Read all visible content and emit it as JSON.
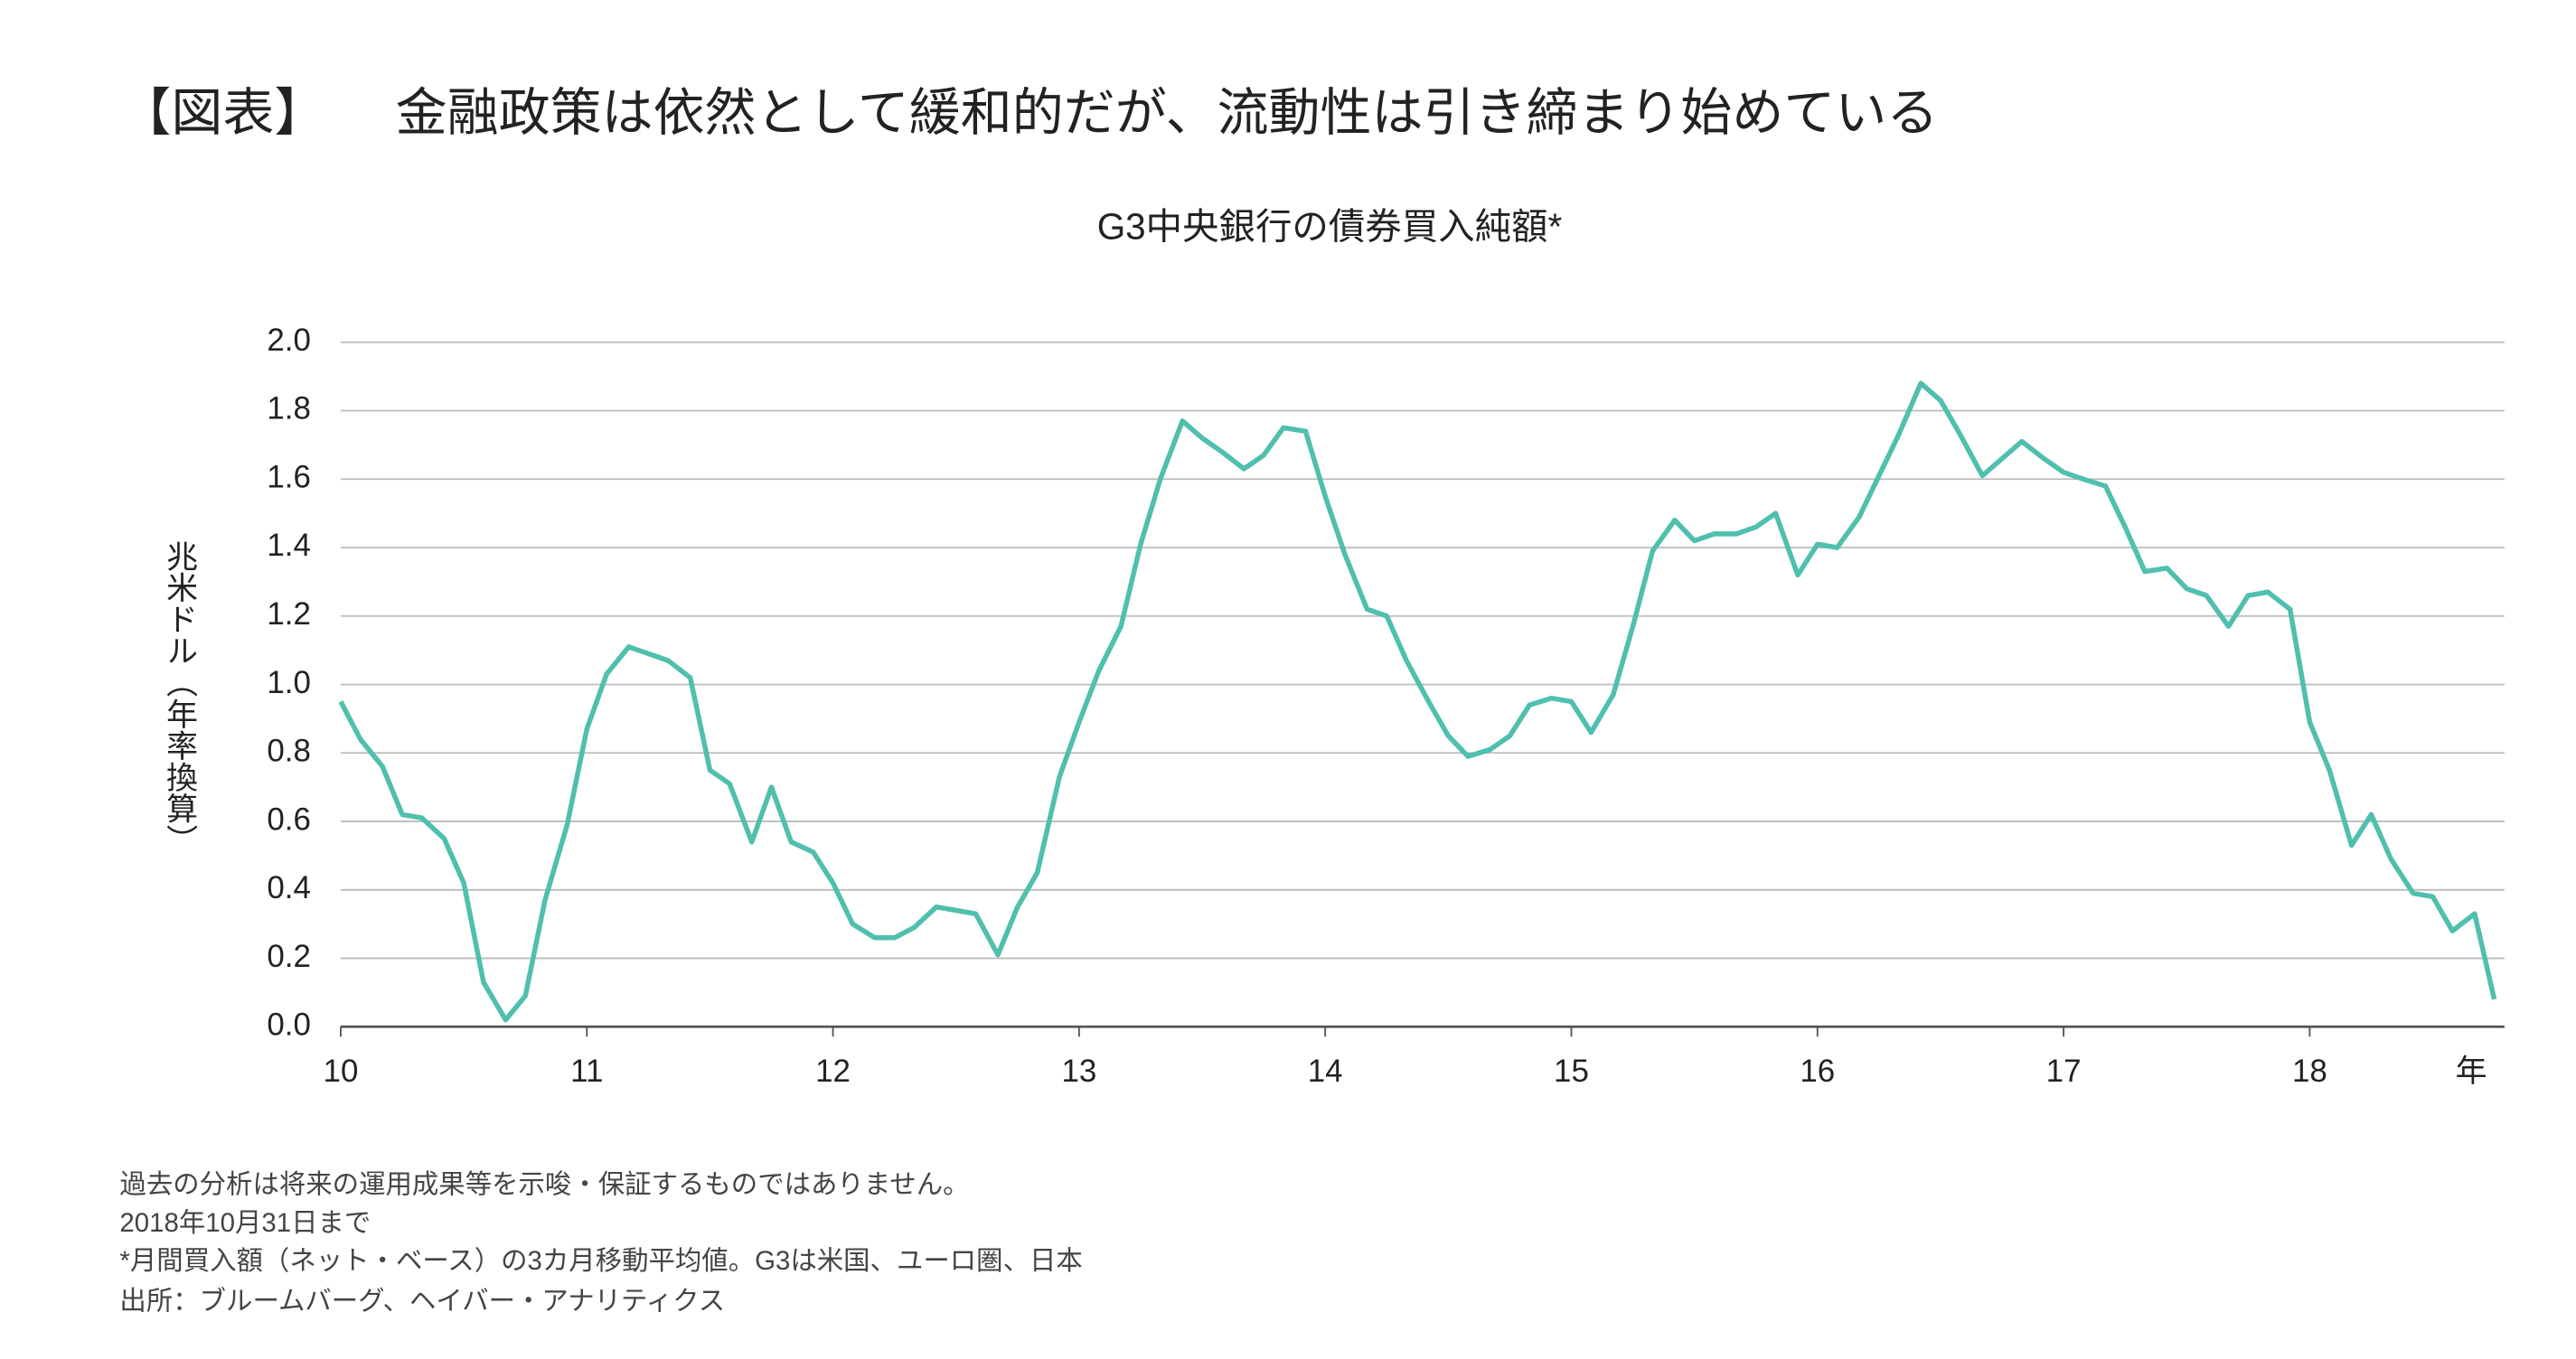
{
  "header": {
    "tag": "【図表】",
    "title": "金融政策は依然として緩和的だが、流動性は引き締まり始めている"
  },
  "chart_data": {
    "type": "line",
    "title": "G3中央銀行の債券買入純額*",
    "y_label": "兆米ドル（年率換算）",
    "x_unit": "年",
    "xlim": [
      10,
      18.8
    ],
    "xticks": [
      10,
      11,
      12,
      13,
      14,
      15,
      16,
      17,
      18
    ],
    "ylim": [
      0,
      2
    ],
    "yticks": [
      {
        "value": 0,
        "label": "0.0"
      },
      {
        "value": 0.2,
        "label": "0.2"
      },
      {
        "value": 0.4,
        "label": "0.4"
      },
      {
        "value": 0.6,
        "label": "0.6"
      },
      {
        "value": 0.8,
        "label": "0.8"
      },
      {
        "value": 1,
        "label": "1.0"
      },
      {
        "value": 1.2,
        "label": "1.2"
      },
      {
        "value": 1.4,
        "label": "1.4"
      },
      {
        "value": 1.6,
        "label": "1.6"
      },
      {
        "value": 1.8,
        "label": "1.8"
      },
      {
        "value": 2,
        "label": "2.0"
      }
    ],
    "grid": true,
    "x": [
      10,
      10.08,
      10.17,
      10.25,
      10.33,
      10.42,
      10.5,
      10.58,
      10.67,
      10.75,
      10.83,
      10.92,
      11,
      11.08,
      11.17,
      11.25,
      11.33,
      11.42,
      11.5,
      11.58,
      11.67,
      11.75,
      11.83,
      11.92,
      12,
      12.08,
      12.17,
      12.25,
      12.33,
      12.42,
      12.5,
      12.58,
      12.67,
      12.75,
      12.83,
      12.92,
      13,
      13.08,
      13.17,
      13.25,
      13.33,
      13.42,
      13.5,
      13.58,
      13.67,
      13.75,
      13.83,
      13.92,
      14,
      14.08,
      14.17,
      14.25,
      14.33,
      14.42,
      14.5,
      14.58,
      14.67,
      14.75,
      14.83,
      14.92,
      15,
      15.08,
      15.17,
      15.25,
      15.33,
      15.42,
      15.5,
      15.58,
      15.67,
      15.75,
      15.83,
      15.92,
      16,
      16.08,
      16.17,
      16.25,
      16.33,
      16.42,
      16.5,
      16.58,
      16.67,
      16.75,
      16.83,
      16.92,
      17,
      17.08,
      17.17,
      17.25,
      17.33,
      17.42,
      17.5,
      17.58,
      17.67,
      17.75,
      17.83,
      17.92,
      18,
      18.08,
      18.17,
      18.25,
      18.33,
      18.42,
      18.5,
      18.58,
      18.67,
      18.75
    ],
    "series": [
      {
        "color": "#4fbfae",
        "values": [
          0.95,
          0.84,
          0.76,
          0.62,
          0.61,
          0.55,
          0.42,
          0.13,
          0.02,
          0.09,
          0.37,
          0.59,
          0.87,
          1.03,
          1.11,
          1.09,
          1.07,
          1.02,
          0.75,
          0.71,
          0.54,
          0.7,
          0.54,
          0.51,
          0.42,
          0.3,
          0.26,
          0.26,
          0.29,
          0.35,
          0.34,
          0.33,
          0.21,
          0.35,
          0.45,
          0.73,
          0.89,
          1.04,
          1.17,
          1.41,
          1.6,
          1.77,
          1.72,
          1.68,
          1.63,
          1.67,
          1.75,
          1.74,
          1.55,
          1.38,
          1.22,
          1.2,
          1.07,
          0.95,
          0.85,
          0.79,
          0.81,
          0.85,
          0.94,
          0.96,
          0.95,
          0.86,
          0.97,
          1.17,
          1.39,
          1.48,
          1.42,
          1.44,
          1.44,
          1.46,
          1.5,
          1.32,
          1.41,
          1.4,
          1.49,
          1.61,
          1.73,
          1.88,
          1.83,
          1.73,
          1.61,
          1.66,
          1.71,
          1.66,
          1.62,
          1.6,
          1.58,
          1.46,
          1.33,
          1.34,
          1.28,
          1.26,
          1.17,
          1.26,
          1.27,
          1.22,
          0.89,
          0.75,
          0.53,
          0.62,
          0.49,
          0.39,
          0.38,
          0.28,
          0.33,
          0.08
        ]
      }
    ]
  },
  "footnotes": [
    "過去の分析は将来の運用成果等を示唆・保証するものではありません。",
    "2018年10月31日まで",
    "*月間買入額（ネット・ベース）の3カ月移動平均値。G3は米国、ユーロ圏、日本",
    "出所：ブルームバーグ、ヘイバー・アナリティクス"
  ]
}
